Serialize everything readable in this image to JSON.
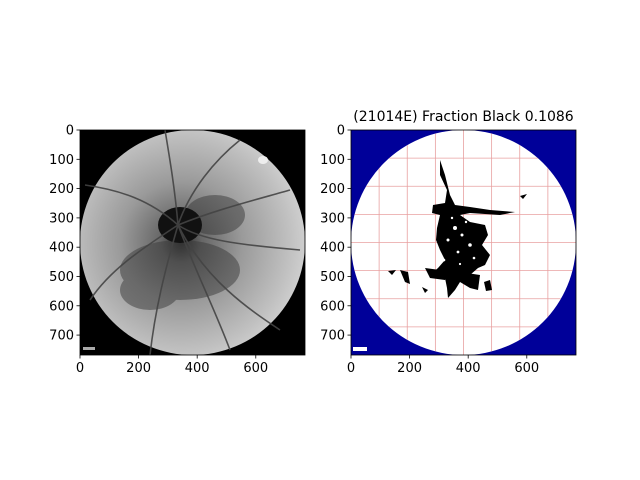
{
  "chart_data": [
    {
      "type": "image",
      "title": "",
      "xlabel": "",
      "ylabel": "",
      "xlim": [
        0,
        768
      ],
      "ylim": [
        768,
        0
      ],
      "xticks": [
        0,
        200,
        400,
        600
      ],
      "yticks": [
        0,
        100,
        200,
        300,
        400,
        500,
        600,
        700
      ],
      "content": "grayscale fundus image with a dark fovea near (340, 320)"
    },
    {
      "type": "image",
      "title": "(21014E) Fraction Black 0.1086",
      "xlabel": "",
      "ylabel": "",
      "xlim": [
        0,
        768
      ],
      "ylim": [
        768,
        0
      ],
      "xticks": [
        0,
        200,
        400,
        600
      ],
      "yticks": [
        0,
        100,
        200,
        300,
        400,
        500,
        600,
        700
      ],
      "fraction_black": 0.1086,
      "background_color": "#000099",
      "grid_color": "#e8a0a0",
      "content": "binary mask of dark pixels inside a white circular field; grid lines every ~96 px"
    }
  ]
}
